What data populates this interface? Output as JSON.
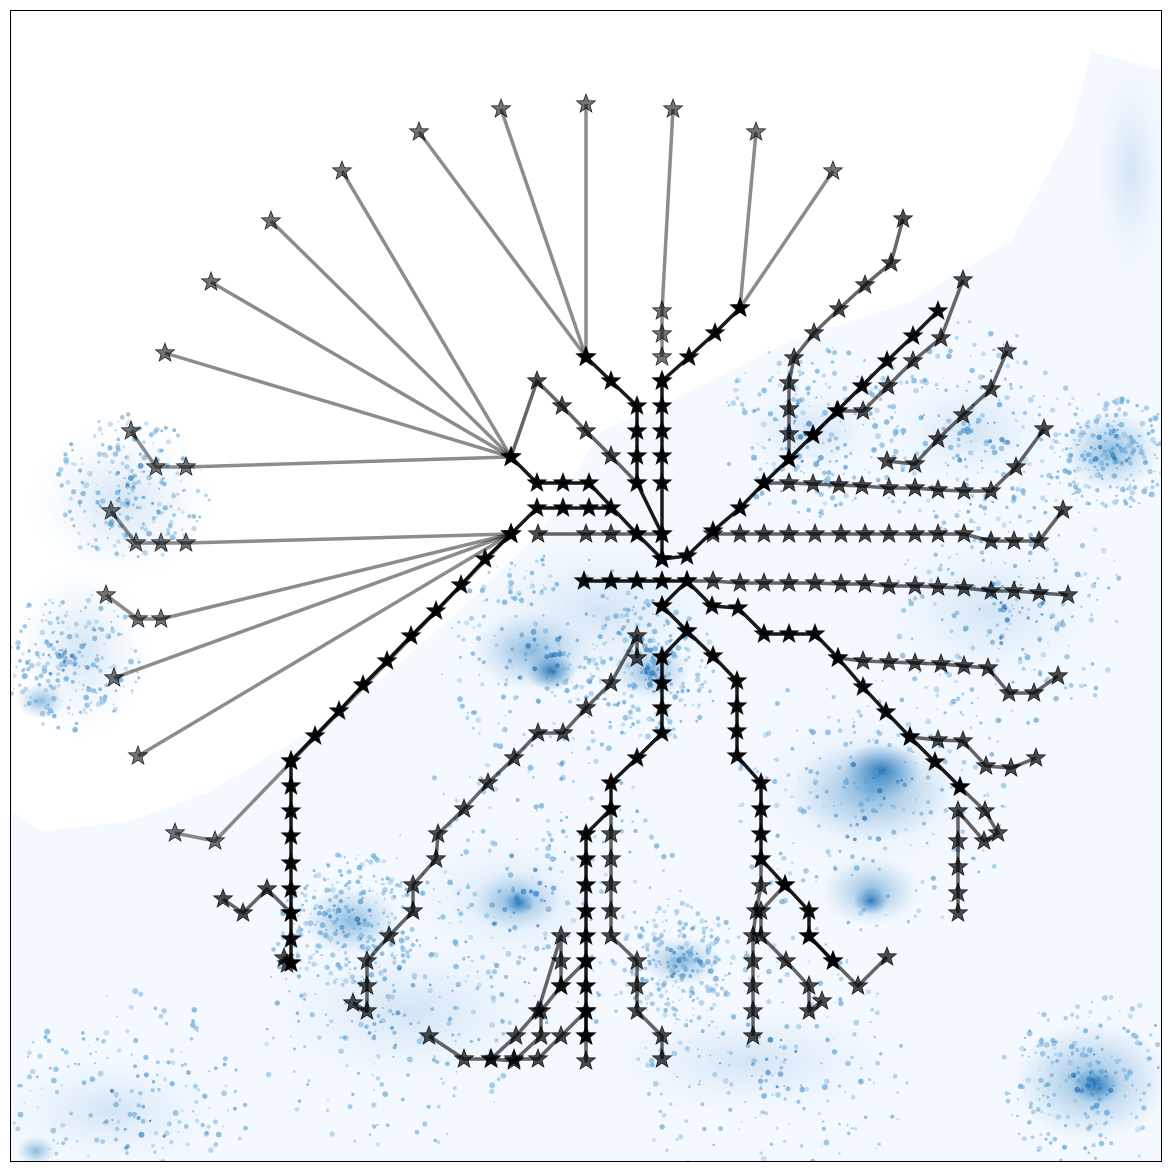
{
  "colors": {
    "background": "#f4f9ff",
    "land_light": "#eaf3fc",
    "density_light": "#9cc4e4",
    "density_mid": "#5a9fd1",
    "density_dark": "#1f6fb4",
    "network": "#000000",
    "frame": "#000000"
  },
  "legend": {
    "visible": false
  },
  "icon_names": [
    "star-marker"
  ],
  "network_branches": [
    {
      "strength": 0.45,
      "points": [
        [
          585,
          103
        ],
        [
          585,
          356
        ]
      ]
    },
    {
      "strength": 0.45,
      "points": [
        [
          500,
          108
        ],
        [
          585,
          356
        ]
      ]
    },
    {
      "strength": 0.45,
      "points": [
        [
          418,
          131
        ],
        [
          585,
          356
        ]
      ]
    },
    {
      "strength": 0.45,
      "points": [
        [
          672,
          108
        ],
        [
          661,
          310
        ],
        [
          661,
          333
        ],
        [
          661,
          356
        ]
      ]
    },
    {
      "strength": 0.45,
      "points": [
        [
          755,
          131
        ],
        [
          739,
          307
        ]
      ]
    },
    {
      "strength": 0.45,
      "points": [
        [
          832,
          170
        ],
        [
          739,
          307
        ]
      ]
    },
    {
      "strength": 0.45,
      "points": [
        [
          341,
          170
        ],
        [
          510,
          456
        ]
      ]
    },
    {
      "strength": 0.45,
      "points": [
        [
          270,
          220
        ],
        [
          510,
          456
        ]
      ]
    },
    {
      "strength": 0.45,
      "points": [
        [
          210,
          281
        ],
        [
          510,
          456
        ]
      ]
    },
    {
      "strength": 0.45,
      "points": [
        [
          164,
          352
        ],
        [
          510,
          456
        ]
      ]
    },
    {
      "strength": 0.45,
      "points": [
        [
          130,
          430
        ],
        [
          155,
          466
        ],
        [
          185,
          466
        ],
        [
          510,
          456
        ]
      ]
    },
    {
      "strength": 0.45,
      "points": [
        [
          110,
          510
        ],
        [
          135,
          542
        ],
        [
          160,
          542
        ],
        [
          185,
          542
        ],
        [
          510,
          533
        ]
      ]
    },
    {
      "strength": 0.45,
      "points": [
        [
          105,
          594
        ],
        [
          137,
          618
        ],
        [
          160,
          618
        ],
        [
          510,
          533
        ]
      ]
    },
    {
      "strength": 0.45,
      "points": [
        [
          113,
          677
        ],
        [
          510,
          533
        ]
      ]
    },
    {
      "strength": 0.45,
      "points": [
        [
          137,
          755
        ],
        [
          510,
          533
        ]
      ]
    },
    {
      "strength": 0.45,
      "points": [
        [
          174,
          832
        ],
        [
          214,
          840
        ],
        [
          510,
          533
        ]
      ]
    },
    {
      "strength": 0.9,
      "points": [
        [
          585,
          356
        ],
        [
          610,
          380
        ],
        [
          636,
          405
        ],
        [
          636,
          430
        ],
        [
          636,
          455
        ],
        [
          636,
          482
        ],
        [
          661,
          533
        ],
        [
          661,
          558
        ]
      ]
    },
    {
      "strength": 0.9,
      "points": [
        [
          661,
          380
        ],
        [
          661,
          405
        ],
        [
          661,
          430
        ],
        [
          661,
          455
        ],
        [
          661,
          482
        ],
        [
          661,
          533
        ]
      ]
    },
    {
      "strength": 0.9,
      "points": [
        [
          739,
          307
        ],
        [
          714,
          332
        ],
        [
          688,
          356
        ],
        [
          661,
          380
        ]
      ]
    },
    {
      "strength": 0.9,
      "points": [
        [
          510,
          456
        ],
        [
          536,
          482
        ],
        [
          562,
          482
        ],
        [
          588,
          482
        ],
        [
          636,
          533
        ],
        [
          661,
          558
        ]
      ]
    },
    {
      "strength": 0.9,
      "points": [
        [
          510,
          533
        ],
        [
          536,
          507
        ],
        [
          562,
          507
        ],
        [
          588,
          507
        ],
        [
          610,
          507
        ]
      ]
    },
    {
      "strength": 0.9,
      "points": [
        [
          510,
          533
        ],
        [
          484,
          558
        ],
        [
          460,
          584
        ],
        [
          435,
          610
        ],
        [
          410,
          635
        ],
        [
          386,
          660
        ],
        [
          362,
          684
        ],
        [
          338,
          710
        ],
        [
          314,
          735
        ],
        [
          290,
          760
        ]
      ]
    },
    {
      "strength": 0.9,
      "points": [
        [
          290,
          760
        ],
        [
          290,
          785
        ],
        [
          290,
          810
        ],
        [
          290,
          835
        ],
        [
          290,
          862
        ],
        [
          290,
          888
        ],
        [
          290,
          912
        ],
        [
          290,
          938
        ],
        [
          290,
          962
        ]
      ]
    },
    {
      "strength": 0.9,
      "points": [
        [
          583,
          580
        ],
        [
          610,
          580
        ],
        [
          636,
          580
        ],
        [
          661,
          580
        ],
        [
          686,
          580
        ]
      ]
    },
    {
      "strength": 0.9,
      "points": [
        [
          661,
          558
        ],
        [
          686,
          555
        ],
        [
          712,
          530
        ],
        [
          739,
          507
        ],
        [
          763,
          482
        ],
        [
          788,
          458
        ],
        [
          812,
          434
        ],
        [
          836,
          410
        ],
        [
          861,
          385
        ],
        [
          886,
          360
        ],
        [
          912,
          335
        ],
        [
          937,
          310
        ]
      ]
    },
    {
      "strength": 0.9,
      "points": [
        [
          661,
          605
        ],
        [
          686,
          630
        ],
        [
          712,
          655
        ],
        [
          736,
          680
        ],
        [
          736,
          705
        ],
        [
          736,
          730
        ],
        [
          736,
          755
        ],
        [
          760,
          782
        ],
        [
          760,
          808
        ],
        [
          760,
          833
        ],
        [
          760,
          858
        ],
        [
          784,
          884
        ],
        [
          808,
          910
        ],
        [
          808,
          935
        ],
        [
          832,
          960
        ]
      ]
    },
    {
      "strength": 0.9,
      "points": [
        [
          686,
          630
        ],
        [
          661,
          656
        ],
        [
          661,
          682
        ],
        [
          661,
          707
        ],
        [
          661,
          732
        ],
        [
          636,
          757
        ],
        [
          610,
          782
        ],
        [
          610,
          808
        ],
        [
          585,
          833
        ],
        [
          585,
          858
        ],
        [
          585,
          884
        ],
        [
          585,
          910
        ],
        [
          585,
          935
        ],
        [
          585,
          960
        ],
        [
          585,
          985
        ],
        [
          585,
          1010
        ],
        [
          585,
          1035
        ]
      ]
    },
    {
      "strength": 0.9,
      "points": [
        [
          661,
          605
        ],
        [
          686,
          580
        ],
        [
          711,
          605
        ],
        [
          737,
          607
        ],
        [
          763,
          633
        ],
        [
          788,
          633
        ],
        [
          814,
          633
        ],
        [
          837,
          657
        ],
        [
          862,
          686
        ],
        [
          885,
          711
        ],
        [
          909,
          736
        ],
        [
          934,
          761
        ],
        [
          959,
          786
        ]
      ]
    },
    {
      "strength": 0.6,
      "points": [
        [
          510,
          456
        ],
        [
          536,
          380
        ],
        [
          561,
          405
        ],
        [
          585,
          430
        ],
        [
          610,
          455
        ],
        [
          636,
          482
        ]
      ]
    },
    {
      "strength": 0.6,
      "points": [
        [
          537,
          533
        ],
        [
          585,
          533
        ],
        [
          610,
          533
        ],
        [
          636,
          533
        ],
        [
          661,
          533
        ]
      ]
    },
    {
      "strength": 0.6,
      "points": [
        [
          712,
          533
        ],
        [
          739,
          533
        ],
        [
          763,
          533
        ],
        [
          788,
          533
        ],
        [
          814,
          533
        ],
        [
          840,
          533
        ],
        [
          864,
          533
        ],
        [
          888,
          533
        ],
        [
          914,
          533
        ],
        [
          937,
          533
        ],
        [
          963,
          533
        ],
        [
          990,
          540
        ],
        [
          1013,
          540
        ],
        [
          1038,
          540
        ],
        [
          1062,
          509
        ]
      ]
    },
    {
      "strength": 0.6,
      "points": [
        [
          763,
          482
        ],
        [
          788,
          482
        ],
        [
          812,
          483
        ],
        [
          838,
          484
        ],
        [
          861,
          485
        ],
        [
          888,
          487
        ],
        [
          914,
          487
        ],
        [
          937,
          489
        ],
        [
          963,
          490
        ],
        [
          990,
          490
        ],
        [
          1015,
          466
        ],
        [
          1043,
          428
        ]
      ]
    },
    {
      "strength": 0.6,
      "points": [
        [
          686,
          580
        ],
        [
          712,
          580
        ],
        [
          739,
          582
        ],
        [
          763,
          582
        ],
        [
          788,
          582
        ],
        [
          814,
          582
        ],
        [
          840,
          583
        ],
        [
          864,
          583
        ],
        [
          888,
          585
        ],
        [
          914,
          585
        ],
        [
          937,
          586
        ],
        [
          963,
          587
        ],
        [
          990,
          590
        ],
        [
          1013,
          590
        ],
        [
          1038,
          592
        ],
        [
          1067,
          594
        ]
      ]
    },
    {
      "strength": 0.6,
      "points": [
        [
          788,
          458
        ],
        [
          788,
          433
        ],
        [
          788,
          408
        ],
        [
          788,
          382
        ],
        [
          793,
          357
        ],
        [
          813,
          332
        ],
        [
          838,
          308
        ],
        [
          864,
          284
        ],
        [
          890,
          262
        ],
        [
          902,
          218
        ]
      ]
    },
    {
      "strength": 0.6,
      "points": [
        [
          812,
          434
        ],
        [
          837,
          410
        ],
        [
          862,
          410
        ],
        [
          887,
          385
        ],
        [
          912,
          360
        ],
        [
          940,
          337
        ],
        [
          962,
          279
        ]
      ]
    },
    {
      "strength": 0.6,
      "points": [
        [
          886,
          460
        ],
        [
          914,
          463
        ],
        [
          937,
          438
        ],
        [
          962,
          414
        ],
        [
          990,
          388
        ],
        [
          1006,
          350
        ]
      ]
    },
    {
      "strength": 0.6,
      "points": [
        [
          837,
          657
        ],
        [
          862,
          660
        ],
        [
          888,
          661
        ],
        [
          914,
          662
        ],
        [
          940,
          663
        ],
        [
          963,
          665
        ],
        [
          987,
          667
        ],
        [
          1008,
          692
        ],
        [
          1033,
          692
        ],
        [
          1057,
          675
        ]
      ]
    },
    {
      "strength": 0.6,
      "points": [
        [
          909,
          736
        ],
        [
          937,
          739
        ],
        [
          962,
          740
        ],
        [
          985,
          765
        ],
        [
          1010,
          767
        ],
        [
          1035,
          757
        ]
      ]
    },
    {
      "strength": 0.6,
      "points": [
        [
          959,
          786
        ],
        [
          984,
          810
        ],
        [
          997,
          832
        ],
        [
          983,
          840
        ],
        [
          957,
          810
        ],
        [
          957,
          840
        ],
        [
          957,
          866
        ],
        [
          957,
          892
        ],
        [
          957,
          912
        ]
      ]
    },
    {
      "strength": 0.6,
      "points": [
        [
          784,
          884
        ],
        [
          760,
          910
        ],
        [
          760,
          935
        ],
        [
          785,
          960
        ],
        [
          808,
          985
        ],
        [
          808,
          1010
        ],
        [
          821,
          1000
        ]
      ]
    },
    {
      "strength": 0.6,
      "points": [
        [
          808,
          935
        ],
        [
          832,
          960
        ],
        [
          857,
          985
        ],
        [
          886,
          956
        ]
      ]
    },
    {
      "strength": 0.6,
      "points": [
        [
          760,
          858
        ],
        [
          760,
          885
        ],
        [
          755,
          910
        ],
        [
          752,
          935
        ],
        [
          752,
          960
        ],
        [
          752,
          985
        ],
        [
          752,
          1010
        ],
        [
          752,
          1035
        ]
      ]
    },
    {
      "strength": 0.6,
      "points": [
        [
          610,
          808
        ],
        [
          610,
          833
        ],
        [
          610,
          858
        ],
        [
          610,
          884
        ],
        [
          610,
          910
        ],
        [
          610,
          935
        ],
        [
          636,
          960
        ],
        [
          636,
          985
        ],
        [
          636,
          1010
        ],
        [
          661,
          1035
        ],
        [
          661,
          1058
        ]
      ]
    },
    {
      "strength": 0.6,
      "points": [
        [
          585,
          1035
        ],
        [
          585,
          1060
        ],
        [
          585,
          1010
        ]
      ]
    },
    {
      "strength": 0.6,
      "points": [
        [
          585,
          960
        ],
        [
          560,
          985
        ],
        [
          540,
          1010
        ],
        [
          540,
          1035
        ],
        [
          513,
          1060
        ],
        [
          490,
          1058
        ],
        [
          463,
          1058
        ],
        [
          428,
          1035
        ]
      ]
    },
    {
      "strength": 0.6,
      "points": [
        [
          585,
          1010
        ],
        [
          560,
          1035
        ],
        [
          537,
          1058
        ],
        [
          513,
          1058
        ]
      ]
    },
    {
      "strength": 0.6,
      "points": [
        [
          560,
          985
        ],
        [
          560,
          960
        ],
        [
          560,
          935
        ],
        [
          537,
          1010
        ],
        [
          515,
          1035
        ],
        [
          490,
          1058
        ]
      ]
    },
    {
      "strength": 0.6,
      "points": [
        [
          636,
          657
        ],
        [
          636,
          635
        ],
        [
          610,
          682
        ],
        [
          585,
          707
        ],
        [
          562,
          732
        ],
        [
          537,
          732
        ],
        [
          513,
          757
        ],
        [
          487,
          782
        ],
        [
          463,
          808
        ],
        [
          437,
          833
        ],
        [
          435,
          858
        ],
        [
          412,
          884
        ],
        [
          412,
          910
        ],
        [
          388,
          935
        ],
        [
          366,
          960
        ],
        [
          366,
          985
        ],
        [
          366,
          1010
        ],
        [
          352,
          1002
        ]
      ]
    },
    {
      "strength": 0.6,
      "points": [
        [
          290,
          912
        ],
        [
          266,
          888
        ],
        [
          242,
          912
        ],
        [
          222,
          898
        ]
      ]
    },
    {
      "strength": 0.6,
      "points": [
        [
          290,
          962
        ],
        [
          283,
          957
        ],
        [
          286,
          963
        ]
      ]
    }
  ]
}
